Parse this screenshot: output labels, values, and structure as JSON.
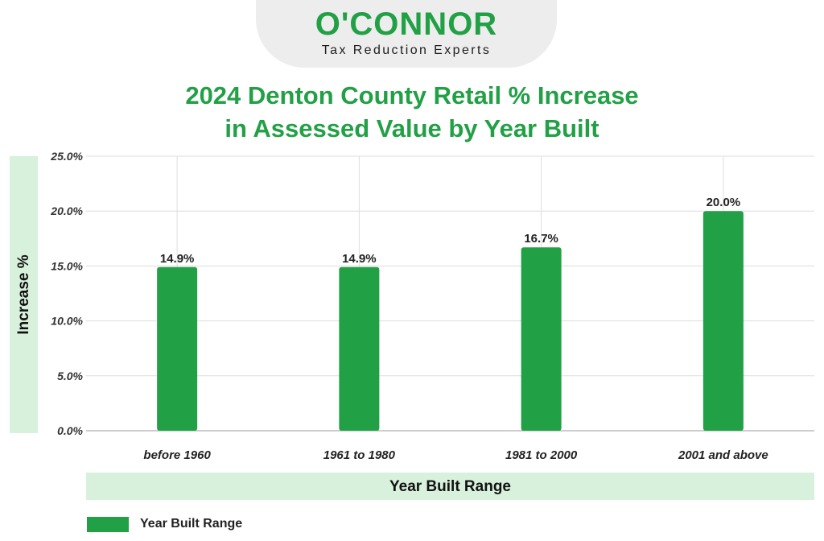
{
  "logo": {
    "wordmark": "O'CONNOR",
    "tagline": "Tax Reduction Experts"
  },
  "colors": {
    "accent": "#22a046",
    "label_bg": "#d7f1dd",
    "logo_bg": "#ededed"
  },
  "chart_data": {
    "type": "bar",
    "title_lines": [
      "2024 Denton County Retail % Increase",
      "in Assessed Value by Year Built"
    ],
    "xlabel": "Year Built Range",
    "ylabel": "Increase %",
    "categories": [
      "before 1960",
      "1961 to 1980",
      "1981 to 2000",
      "2001 and above"
    ],
    "series": [
      {
        "name": "Year Built Range",
        "values": [
          14.9,
          14.9,
          16.7,
          20.0
        ]
      }
    ],
    "data_labels": [
      "14.9%",
      "14.9%",
      "16.7%",
      "20.0%"
    ],
    "ylim": [
      0,
      25
    ],
    "yticks": [
      0,
      5,
      10,
      15,
      20,
      25
    ],
    "ytick_labels": [
      "0.0%",
      "5.0%",
      "10.0%",
      "15.0%",
      "20.0%",
      "25.0%"
    ],
    "grid": true,
    "legend": "bottom-left"
  }
}
